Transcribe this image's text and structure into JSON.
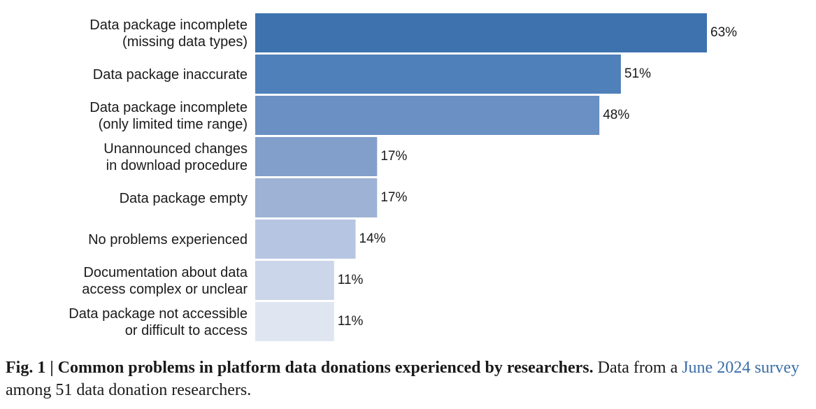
{
  "chart_data": {
    "type": "bar",
    "orientation": "horizontal",
    "unit": "%",
    "xlim": [
      0,
      63
    ],
    "categories": [
      [
        "Data package incomplete",
        "(missing data types)"
      ],
      [
        "Data package inaccurate"
      ],
      [
        "Data package incomplete",
        "(only limited time range)"
      ],
      [
        "Unannounced changes",
        "in download procedure"
      ],
      [
        "Data package empty"
      ],
      [
        "No problems experienced"
      ],
      [
        "Documentation about data",
        "access complex or unclear"
      ],
      [
        "Data package not accessible",
        "or difficult to access"
      ]
    ],
    "values": [
      63,
      51,
      48,
      17,
      17,
      14,
      11,
      11
    ],
    "value_labels": [
      "63%",
      "51%",
      "48%",
      "17%",
      "17%",
      "14%",
      "11%",
      "11%"
    ],
    "colors": [
      "#3d72ae",
      "#5080b9",
      "#6a90c4",
      "#829fcb",
      "#9db2d5",
      "#b6c6e2",
      "#ccd6ea",
      "#e0e6f1"
    ],
    "grid": false,
    "legend": "none"
  },
  "caption": {
    "fig_label": "Fig. 1 | ",
    "title": "Common problems in platform data donations experienced by researchers.",
    "text_before_link": " Data from a ",
    "link_text": "June 2024 survey",
    "text_after_link": " among 51 data donation researchers."
  }
}
